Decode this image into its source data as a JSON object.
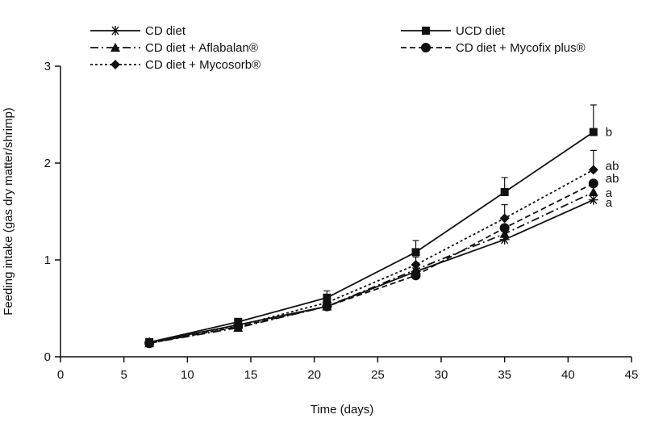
{
  "chart_data": {
    "type": "line",
    "title": "",
    "xlabel": "Time (days)",
    "ylabel": "Feeding intake (gas dry matter/shrimp)",
    "xlim": [
      0,
      45
    ],
    "ylim": [
      0,
      3
    ],
    "xticks": [
      "0",
      "5",
      "10",
      "15",
      "20",
      "25",
      "30",
      "35",
      "40",
      "45"
    ],
    "yticks": [
      "0",
      "1",
      "2",
      "3"
    ],
    "x": [
      7,
      14,
      21,
      28,
      35,
      42
    ],
    "series": [
      {
        "name": "CD diet",
        "marker": "asterisk",
        "dash": "solid",
        "values": [
          0.15,
          0.33,
          0.52,
          0.88,
          1.21,
          1.62
        ]
      },
      {
        "name": "UCD diet",
        "marker": "square",
        "dash": "solid",
        "values": [
          0.15,
          0.36,
          0.61,
          1.08,
          1.7,
          2.32
        ],
        "errors": [
          0.03,
          0.03,
          0.07,
          0.12,
          0.15,
          0.28
        ]
      },
      {
        "name": "CD diet + Aflabalan®",
        "marker": "triangle",
        "dash": "dashdot",
        "values": [
          0.14,
          0.3,
          0.52,
          0.9,
          1.27,
          1.7
        ]
      },
      {
        "name": "CD diet + Mycofix plus®",
        "marker": "circle",
        "dash": "dashed",
        "values": [
          0.14,
          0.31,
          0.52,
          0.84,
          1.33,
          1.79
        ]
      },
      {
        "name": "CD diet + Mycosorb®",
        "marker": "diamond",
        "dash": "dotted",
        "values": [
          0.14,
          0.32,
          0.56,
          0.95,
          1.43,
          1.93
        ],
        "errors": [
          0.03,
          0.03,
          0.06,
          0.08,
          0.14,
          0.2
        ]
      }
    ],
    "annotations": [
      {
        "text": "b",
        "y": 2.32
      },
      {
        "text": "ab",
        "y": 1.97
      },
      {
        "text": "ab",
        "y": 1.84
      },
      {
        "text": "a",
        "y": 1.69
      },
      {
        "text": "a",
        "y": 1.59
      }
    ],
    "legend_placement": "top"
  }
}
